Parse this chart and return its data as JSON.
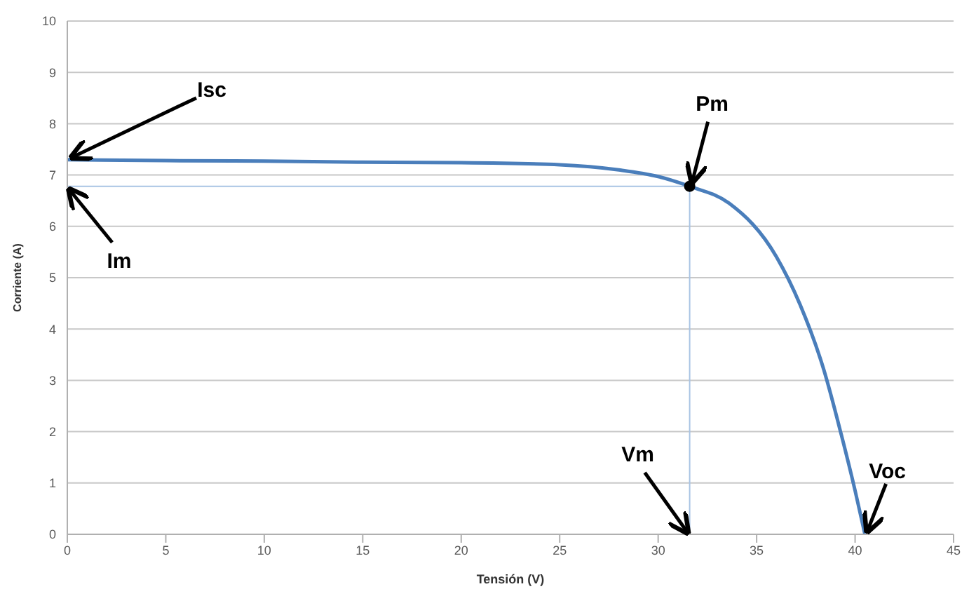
{
  "chart_data": {
    "type": "line",
    "xlabel": "Tensión (V)",
    "ylabel": "Corriente (A)",
    "xlim": [
      0,
      45
    ],
    "xticks": [
      0,
      5,
      10,
      15,
      20,
      25,
      30,
      35,
      40,
      45
    ],
    "ylim": [
      0,
      10
    ],
    "yticks": [
      0,
      1,
      2,
      3,
      4,
      5,
      6,
      7,
      8,
      9,
      10
    ],
    "grid": "y",
    "marker": "none",
    "line_style": "solid",
    "series": [
      {
        "color": "#4a7ebb",
        "x": [
          0,
          5,
          10,
          15,
          20,
          25,
          28,
          30,
          31.6,
          33.6,
          36,
          37.2,
          38.4,
          39.3,
          40,
          40.5
        ],
        "values": [
          7.3,
          7.28,
          7.27,
          7.25,
          7.24,
          7.2,
          7.1,
          6.97,
          6.78,
          6.45,
          5.41,
          4.48,
          3.22,
          1.94,
          0.85,
          0
        ]
      },
      {
        "color": "#a9c4e4",
        "x": [
          0,
          31.6
        ],
        "values": [
          6.78,
          6.78
        ]
      },
      {
        "color": "#a9c4e4",
        "x": [
          31.6,
          31.6
        ],
        "values": [
          0,
          6.78
        ]
      },
      {
        "type": "scatter",
        "color": "#000000",
        "marker": "circle",
        "x": [
          31.6
        ],
        "values": [
          6.78
        ]
      }
    ],
    "annotations": [
      {
        "text": "Isc",
        "x": 0,
        "y": 7.3
      },
      {
        "text": "Im",
        "x": 0,
        "y": 6.78
      },
      {
        "text": "Pm",
        "x": 31.6,
        "y": 6.78
      },
      {
        "text": "Vm",
        "x": 31.6,
        "y": 0
      },
      {
        "text": "Voc",
        "x": 40.5,
        "y": 0
      }
    ]
  }
}
